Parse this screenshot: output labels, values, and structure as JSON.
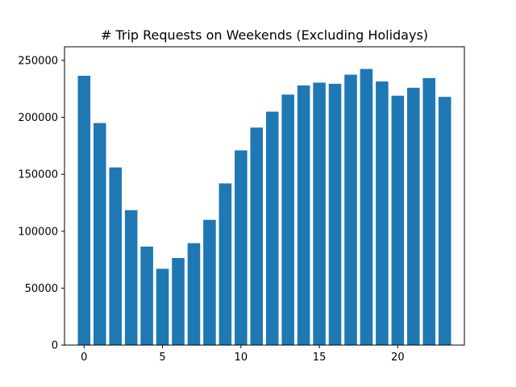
{
  "chart_data": {
    "type": "bar",
    "title": "# Trip Requests on Weekends (Excluding Holidays)",
    "xlabel": "",
    "ylabel": "",
    "x": [
      0,
      1,
      2,
      3,
      4,
      5,
      6,
      7,
      8,
      9,
      10,
      11,
      12,
      13,
      14,
      15,
      16,
      17,
      18,
      19,
      20,
      21,
      22,
      23
    ],
    "values": [
      236500,
      195000,
      156000,
      118500,
      86500,
      67000,
      76500,
      89500,
      110000,
      142000,
      171000,
      191000,
      205000,
      220000,
      228000,
      230500,
      229500,
      237500,
      242500,
      231500,
      219000,
      226000,
      234500,
      218000
    ],
    "xlim": [
      -1.25,
      24.25
    ],
    "ylim": [
      0,
      262000
    ],
    "xticks": [
      0,
      5,
      10,
      15,
      20
    ],
    "yticks": [
      0,
      50000,
      100000,
      150000,
      200000,
      250000
    ],
    "bar_color": "#1f77b4",
    "grid": false,
    "legend": "none"
  }
}
